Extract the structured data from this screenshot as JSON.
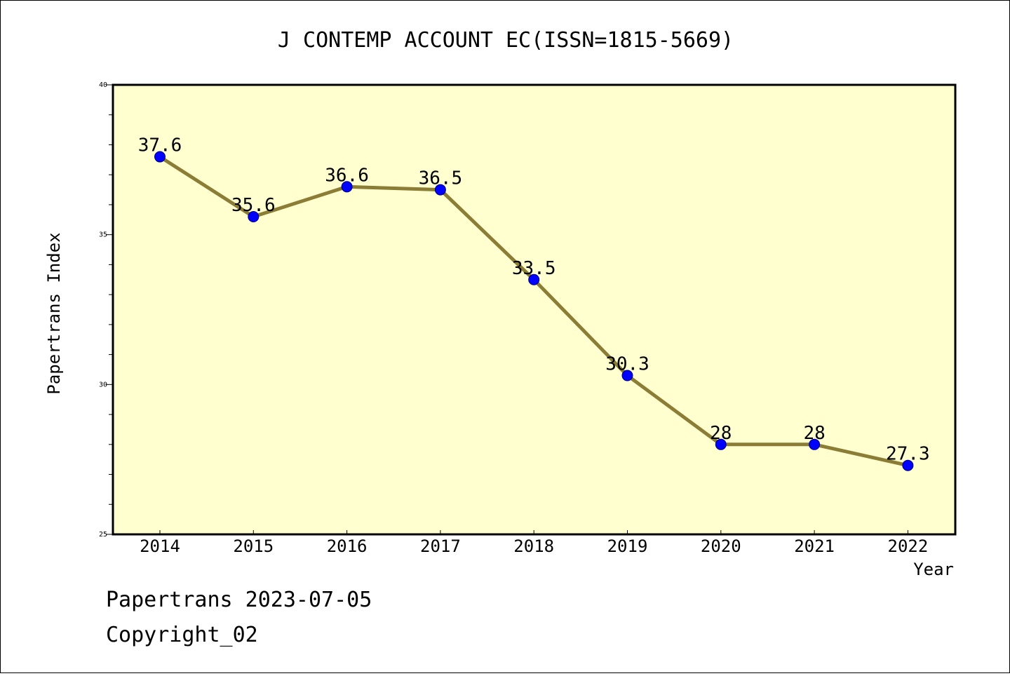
{
  "chart_data": {
    "type": "line",
    "title": "J CONTEMP ACCOUNT EC(ISSN=1815-5669)",
    "xlabel": "Year",
    "ylabel": "Papertrans Index",
    "ylim": [
      25,
      40
    ],
    "yticks": [
      "25",
      "30",
      "35",
      "40"
    ],
    "categories": [
      "2014",
      "2015",
      "2016",
      "2017",
      "2018",
      "2019",
      "2020",
      "2021",
      "2022"
    ],
    "values": [
      37.6,
      35.6,
      36.6,
      36.5,
      33.5,
      30.3,
      28,
      28,
      27.3
    ],
    "data_labels": [
      "37.6",
      "35.6",
      "36.6",
      "36.5",
      "33.5",
      "30.3",
      "28",
      "28",
      "27.3"
    ],
    "grid": false,
    "line_color": "#8b7d35",
    "marker_color": "#0000ff",
    "plot_background": "#ffffd0"
  },
  "footer": {
    "line1": "Papertrans 2023-07-05",
    "line2": "Copyright_02"
  }
}
